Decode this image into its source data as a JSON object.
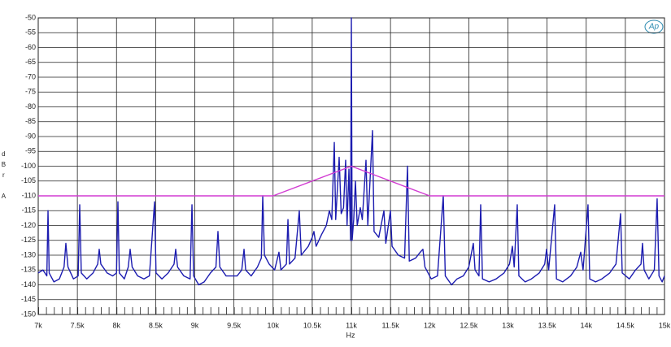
{
  "chart_data": {
    "type": "line",
    "x_label": "Hz",
    "y_label": "dBr A",
    "logo": "Ap",
    "xlim": [
      7000,
      15000
    ],
    "ylim": [
      -150,
      -50
    ],
    "grid": true,
    "xticks": [
      {
        "value": 7000,
        "label": "7k"
      },
      {
        "value": 7500,
        "label": "7.5k"
      },
      {
        "value": 8000,
        "label": "8k"
      },
      {
        "value": 8500,
        "label": "8.5k"
      },
      {
        "value": 9000,
        "label": "9k"
      },
      {
        "value": 9500,
        "label": "9.5k"
      },
      {
        "value": 10000,
        "label": "10k"
      },
      {
        "value": 10500,
        "label": "10.5k"
      },
      {
        "value": 11000,
        "label": "11k"
      },
      {
        "value": 11500,
        "label": "11.5k"
      },
      {
        "value": 12000,
        "label": "12k"
      },
      {
        "value": 12500,
        "label": "12.5k"
      },
      {
        "value": 13000,
        "label": "13k"
      },
      {
        "value": 13500,
        "label": "13.5k"
      },
      {
        "value": 14000,
        "label": "14k"
      },
      {
        "value": 14500,
        "label": "14.5k"
      },
      {
        "value": 15000,
        "label": "15k"
      }
    ],
    "yticks": [
      -50,
      -55,
      -60,
      -65,
      -70,
      -75,
      -80,
      -85,
      -90,
      -95,
      -100,
      -105,
      -110,
      -115,
      -120,
      -125,
      -130,
      -135,
      -140,
      -145,
      -150
    ],
    "series": [
      {
        "color": "#1c1cb0",
        "x": [
          7000,
          7060,
          7110,
          7125,
          7140,
          7200,
          7270,
          7330,
          7353,
          7380,
          7450,
          7510,
          7530,
          7550,
          7620,
          7700,
          7760,
          7779,
          7800,
          7880,
          7950,
          8000,
          8018,
          8036,
          8100,
          8150,
          8174,
          8200,
          8270,
          8350,
          8420,
          8486,
          8505,
          8580,
          8660,
          8735,
          8756,
          8780,
          8860,
          8940,
          8964,
          8985,
          9050,
          9120,
          9200,
          9270,
          9296,
          9320,
          9400,
          9480,
          9540,
          9600,
          9629,
          9650,
          9720,
          9800,
          9850,
          9868,
          9890,
          9950,
          10020,
          10075,
          10100,
          10170,
          10190,
          10210,
          10280,
          10335,
          10360,
          10450,
          10500,
          10522,
          10550,
          10620,
          10680,
          10719,
          10750,
          10782,
          10800,
          10844,
          10870,
          10900,
          10927,
          10945,
          10969,
          10990,
          11000,
          11010,
          11030,
          11052,
          11075,
          11114,
          11140,
          11187,
          11210,
          11270,
          11290,
          11350,
          11416,
          11440,
          11499,
          11520,
          11600,
          11680,
          11717,
          11740,
          11820,
          11880,
          11914,
          11940,
          12020,
          12100,
          12174,
          12200,
          12280,
          12350,
          12430,
          12500,
          12558,
          12580,
          12630,
          12652,
          12675,
          12760,
          12850,
          12950,
          13020,
          13057,
          13080,
          13119,
          13140,
          13220,
          13300,
          13400,
          13470,
          13494,
          13520,
          13597,
          13620,
          13700,
          13800,
          13880,
          13930,
          13960,
          14023,
          14045,
          14120,
          14200,
          14300,
          14380,
          14439,
          14460,
          14550,
          14630,
          14700,
          14719,
          14740,
          14800,
          14870,
          14906,
          14930,
          14970,
          15000
        ],
        "values": [
          -136,
          -135,
          -137,
          -115,
          -136,
          -139,
          -138,
          -134,
          -126,
          -134,
          -138,
          -137,
          -113,
          -136,
          -138,
          -136,
          -133,
          -128,
          -133,
          -136,
          -137,
          -136,
          -112,
          -136,
          -138,
          -134,
          -128,
          -134,
          -137,
          -138,
          -137,
          -112,
          -136,
          -138,
          -136,
          -133,
          -128,
          -134,
          -137,
          -138,
          -113,
          -137,
          -140,
          -139,
          -136,
          -134,
          -122,
          -134,
          -137,
          -137,
          -137,
          -135,
          -128,
          -135,
          -137,
          -134,
          -131,
          -110,
          -130,
          -133,
          -135,
          -129,
          -135,
          -133,
          -118,
          -133,
          -131,
          -115,
          -130,
          -127,
          -124,
          -122,
          -127,
          -123,
          -120,
          -115,
          -118,
          -92,
          -118,
          -97,
          -116,
          -114,
          -98,
          -120,
          -101,
          -125,
          -50,
          -125,
          -118,
          -105,
          -120,
          -114,
          -118,
          -98,
          -120,
          -88,
          -122,
          -124,
          -115,
          -126,
          -115,
          -127,
          -130,
          -131,
          -100,
          -132,
          -131,
          -129,
          -128,
          -134,
          -138,
          -137,
          -110,
          -137,
          -140,
          -138,
          -137,
          -134,
          -126,
          -135,
          -137,
          -113,
          -138,
          -139,
          -138,
          -136,
          -133,
          -127,
          -134,
          -113,
          -137,
          -139,
          -138,
          -136,
          -133,
          -128,
          -135,
          -113,
          -138,
          -139,
          -137,
          -134,
          -129,
          -135,
          -113,
          -138,
          -139,
          -138,
          -136,
          -133,
          -116,
          -136,
          -138,
          -135,
          -133,
          -126,
          -135,
          -138,
          -135,
          -111,
          -137,
          -139,
          -137
        ]
      },
      {
        "color": "#d23cd2",
        "x": [
          7000,
          10000,
          11000,
          12000,
          15000
        ],
        "values": [
          -110,
          -110,
          -100,
          -110,
          -110
        ]
      }
    ]
  }
}
